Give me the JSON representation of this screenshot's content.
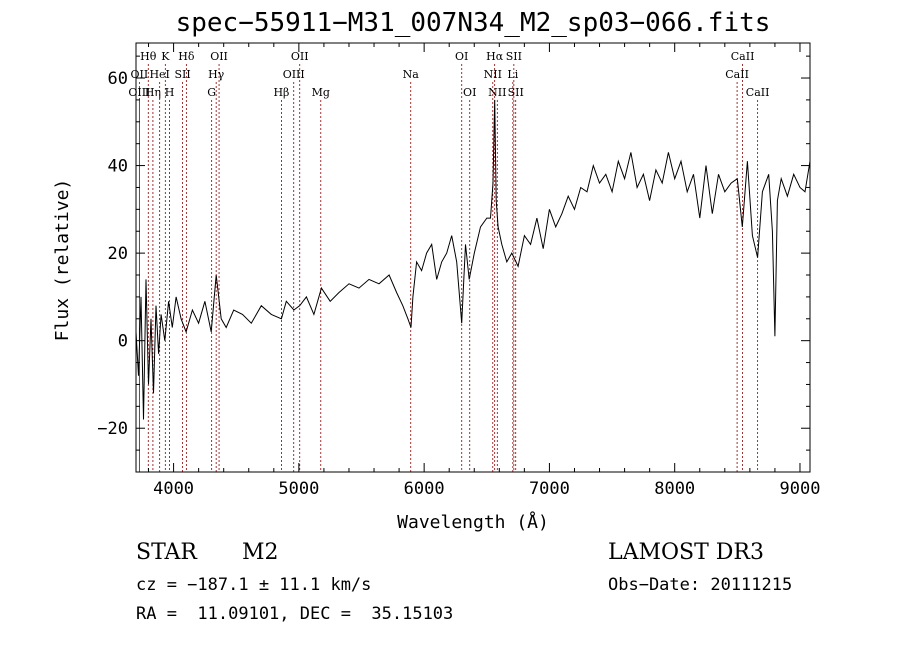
{
  "chart_data": {
    "type": "line",
    "title": "spec−55911−M31_007N34_M2_sp03−066.fits",
    "xlabel": "Wavelength (Å)",
    "ylabel": "Flux (relative)",
    "xlim": [
      3700,
      9080
    ],
    "ylim": [
      -30,
      68
    ],
    "x_ticks": [
      4000,
      5000,
      6000,
      7000,
      8000,
      9000
    ],
    "y_ticks": [
      -20,
      0,
      20,
      40,
      60
    ],
    "y_tick_labels": [
      "−20",
      "0",
      "20",
      "40",
      "60"
    ],
    "line_color": "#000000",
    "marker_color": "#8b0000",
    "series": [
      {
        "name": "flux",
        "x": [
          3700,
          3720,
          3740,
          3760,
          3780,
          3800,
          3820,
          3840,
          3860,
          3880,
          3900,
          3930,
          3960,
          3990,
          4020,
          4060,
          4100,
          4150,
          4200,
          4250,
          4300,
          4340,
          4380,
          4420,
          4480,
          4550,
          4620,
          4700,
          4780,
          4861,
          4900,
          4960,
          5007,
          5060,
          5120,
          5180,
          5250,
          5320,
          5400,
          5480,
          5560,
          5640,
          5720,
          5780,
          5830,
          5870,
          5895,
          5910,
          5940,
          5980,
          6020,
          6060,
          6100,
          6140,
          6180,
          6220,
          6260,
          6300,
          6330,
          6360,
          6400,
          6450,
          6500,
          6530,
          6550,
          6563,
          6575,
          6590,
          6620,
          6660,
          6700,
          6750,
          6800,
          6850,
          6900,
          6950,
          7000,
          7050,
          7100,
          7150,
          7200,
          7250,
          7300,
          7350,
          7400,
          7450,
          7500,
          7550,
          7600,
          7650,
          7700,
          7750,
          7800,
          7850,
          7900,
          7950,
          8000,
          8050,
          8100,
          8150,
          8200,
          8250,
          8300,
          8350,
          8400,
          8450,
          8500,
          8540,
          8580,
          8620,
          8662,
          8700,
          8750,
          8780,
          8800,
          8820,
          8850,
          8900,
          8950,
          9000,
          9040,
          9080
        ],
        "values": [
          2,
          -8,
          10,
          -18,
          14,
          -10,
          5,
          -12,
          8,
          -3,
          6,
          0,
          9,
          3,
          10,
          5,
          2,
          7,
          4,
          9,
          2,
          15,
          5,
          3,
          7,
          6,
          4,
          8,
          6,
          5,
          9,
          7,
          8,
          10,
          6,
          12,
          9,
          11,
          13,
          12,
          14,
          13,
          15,
          11,
          8,
          5,
          3,
          10,
          18,
          16,
          20,
          22,
          14,
          18,
          20,
          24,
          18,
          4,
          22,
          14,
          20,
          26,
          28,
          28,
          36,
          55,
          32,
          26,
          22,
          18,
          20,
          17,
          24,
          22,
          28,
          21,
          30,
          26,
          29,
          33,
          30,
          35,
          34,
          40,
          36,
          38,
          34,
          41,
          37,
          43,
          35,
          38,
          32,
          39,
          36,
          43,
          37,
          41,
          34,
          38,
          28,
          40,
          29,
          38,
          34,
          36,
          37,
          26,
          41,
          24,
          19,
          34,
          38,
          25,
          1,
          32,
          37,
          33,
          38,
          35,
          34,
          41
        ]
      }
    ],
    "line_markers": [
      {
        "label": "Hθ",
        "x": 3798,
        "row": 1
      },
      {
        "label": "K",
        "x": 3934,
        "row": 1
      },
      {
        "label": "Hδ",
        "x": 4102,
        "row": 1
      },
      {
        "label": "OII",
        "x": 4363,
        "row": 1
      },
      {
        "label": "OII",
        "x": 5007,
        "row": 1
      },
      {
        "label": "OI",
        "x": 6300,
        "row": 1
      },
      {
        "label": "Hα",
        "x": 6563,
        "row": 1
      },
      {
        "label": "SII",
        "x": 6716,
        "row": 1
      },
      {
        "label": "CaII",
        "x": 8542,
        "row": 1
      },
      {
        "label": "OII",
        "x": 3727,
        "row": 2
      },
      {
        "label": "HeI",
        "x": 3889,
        "row": 2
      },
      {
        "label": "SII",
        "x": 4072,
        "row": 2
      },
      {
        "label": "Hγ",
        "x": 4340,
        "row": 2
      },
      {
        "label": "OIII",
        "x": 4959,
        "row": 2
      },
      {
        "label": "Na",
        "x": 5893,
        "row": 2
      },
      {
        "label": "NII",
        "x": 6548,
        "row": 2
      },
      {
        "label": "Li",
        "x": 6708,
        "row": 2
      },
      {
        "label": "CaII",
        "x": 8498,
        "row": 2
      },
      {
        "label": "OIII",
        "x": 3727,
        "row": 3
      },
      {
        "label": "Hη",
        "x": 3835,
        "row": 3
      },
      {
        "label": "H",
        "x": 3968,
        "row": 3
      },
      {
        "label": "G",
        "x": 4304,
        "row": 3
      },
      {
        "label": "Hβ",
        "x": 4861,
        "row": 3
      },
      {
        "label": "Mg",
        "x": 5175,
        "row": 3
      },
      {
        "label": "OI",
        "x": 6364,
        "row": 3
      },
      {
        "label": "NII",
        "x": 6584,
        "row": 3
      },
      {
        "label": "SII",
        "x": 6731,
        "row": 3
      },
      {
        "label": "CaII",
        "x": 8662,
        "row": 3
      }
    ]
  },
  "info": {
    "object_class": "STAR",
    "subclass": "M2",
    "survey": "LAMOST DR3",
    "cz": "cz = −187.1 ± 11.1 km/s",
    "obs_date": "Obs−Date: 20111215",
    "radec": "RA =  11.09101, DEC =  35.15103"
  }
}
